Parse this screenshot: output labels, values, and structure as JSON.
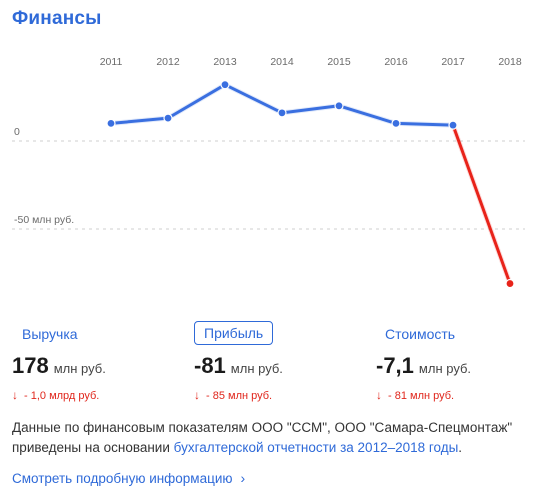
{
  "page": {
    "title": "Финансы"
  },
  "chart_data": {
    "type": "line",
    "title": "",
    "xlabel": "",
    "ylabel": "",
    "categories": [
      "2011",
      "2012",
      "2013",
      "2014",
      "2015",
      "2016",
      "2017",
      "2018"
    ],
    "series": [
      {
        "values": [
          10,
          13,
          32,
          16,
          20,
          10,
          9,
          -81
        ]
      }
    ],
    "y_axis_labels": [
      {
        "value": 0,
        "label": "0"
      },
      {
        "value": -50,
        "label": "-50 млн руб."
      }
    ],
    "ylim": [
      -85,
      38
    ],
    "grid": "dashed reference lines at 0 and -50",
    "colors": {
      "positive": "#3a6fe0",
      "negative": "#e8231a",
      "points": "#3a6fe0"
    }
  },
  "metrics": [
    {
      "label": "Выручка",
      "value": "178",
      "unit": "млн руб.",
      "delta": "- 1,0 млрд руб.",
      "active": false
    },
    {
      "label": "Прибыль",
      "value": "-81",
      "unit": "млн руб.",
      "delta": "- 85 млн руб.",
      "active": true
    },
    {
      "label": "Стоимость",
      "value": "-7,1",
      "unit": "млн руб.",
      "delta": "- 81 млн руб.",
      "active": false
    }
  ],
  "note": {
    "text_before": "Данные по финансовым показателям ООО \"ССМ\", ООО \"Самара-Спецмонтаж\" приведены на основании ",
    "link_text": "бухгалтерской отчетности за 2012–2018 годы",
    "text_after": "."
  },
  "more_link": {
    "label": "Смотреть подробную информацию",
    "icon": "chevron-right-icon"
  }
}
